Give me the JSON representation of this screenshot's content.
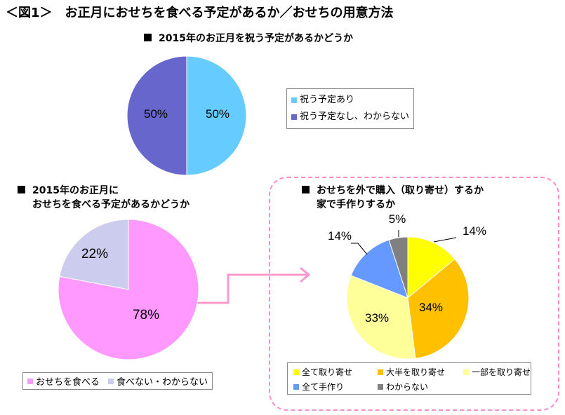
{
  "title": "＜図1＞　お正月におせちを食べる予定があるか／おせちの用意方法",
  "chart_data": [
    {
      "type": "pie",
      "title": "2015年のお正月を祝う予定があるかどうか",
      "categories": [
        "祝う予定あり",
        "祝う予定なし、わからない"
      ],
      "values": [
        50,
        50
      ],
      "labels": [
        "50%",
        "50%"
      ],
      "colors": [
        "#66CCFF",
        "#6666CC"
      ],
      "legend": "right"
    },
    {
      "type": "pie",
      "title": "2015年のお正月におせちを食べる予定があるかどうか",
      "title_lines": [
        "2015年のお正月に",
        "おせちを食べる予定があるかどうか"
      ],
      "categories": [
        "おせちを食べる",
        "食べない・わからない"
      ],
      "values": [
        78,
        22
      ],
      "labels": [
        "78%",
        "22%"
      ],
      "colors": [
        "#FF99FF",
        "#CCCCEE"
      ],
      "legend": "bottom"
    },
    {
      "type": "pie",
      "title": "おせちを外で購入（取り寄せ）するか家で手作りするか",
      "title_lines": [
        "おせちを外で購入（取り寄せ）するか",
        "家で手作りするか"
      ],
      "categories": [
        "全て取り寄せ",
        "大半を取り寄せ",
        "一部を取り寄せ",
        "全て手作り",
        "わからない"
      ],
      "values": [
        14,
        34,
        33,
        14,
        5
      ],
      "labels": [
        "14%",
        "34%",
        "33%",
        "14%",
        "5%"
      ],
      "colors": [
        "#FFFF00",
        "#FFC000",
        "#FFFF99",
        "#6699FF",
        "#808080"
      ],
      "legend": "bottom"
    }
  ]
}
